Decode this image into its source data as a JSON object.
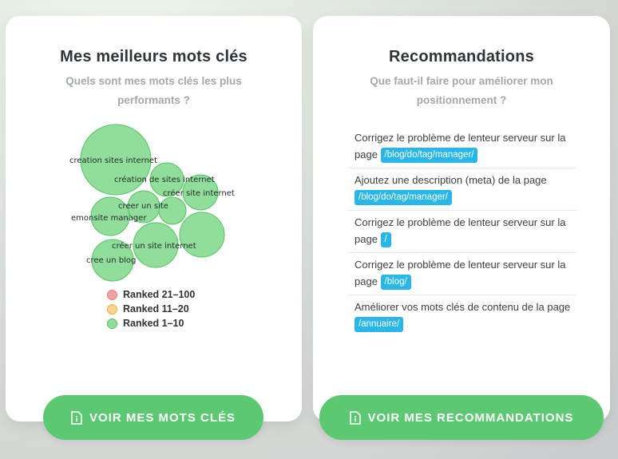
{
  "left_card": {
    "title": "Mes meilleurs mots clés",
    "subtitle": "Quels sont mes mots clés les plus performants ?",
    "bubbles": [
      {
        "label": "creation sites internet",
        "rank": "1-10"
      },
      {
        "label": "création de sites internet",
        "rank": "1-10"
      },
      {
        "label": "créer site internet",
        "rank": "1-10"
      },
      {
        "label": "creer un site",
        "rank": "1-10"
      },
      {
        "label": "emonsite manager",
        "rank": "1-10"
      },
      {
        "label": "créer un site internet",
        "rank": "1-10"
      },
      {
        "label": "cree un blog",
        "rank": "1-10"
      }
    ],
    "legend": [
      {
        "label": "Ranked 21–100",
        "color": "#f4a3a3",
        "border": "#e07b7b"
      },
      {
        "label": "Ranked 11–20",
        "color": "#fcd38a",
        "border": "#e6b04e"
      },
      {
        "label": "Ranked 1–10",
        "color": "#91dd9c",
        "border": "#52c462"
      }
    ],
    "button": {
      "label": "VOIR MES MOTS CLÉS",
      "icon": "document-info-icon"
    }
  },
  "right_card": {
    "title": "Recommandations",
    "subtitle": "Que faut-il faire pour améliorer mon positionnement ?",
    "items": [
      {
        "text": "Corrigez le problème de lenteur serveur sur la page",
        "tag": "/blog/do/tag/manager/"
      },
      {
        "text": "Ajoutez une description (meta) de la page",
        "tag": "/blog/do/tag/manager/"
      },
      {
        "text": "Corrigez le problème de lenteur serveur sur la page",
        "tag": "/"
      },
      {
        "text": "Corrigez le problème de lenteur serveur sur la page",
        "tag": "/blog/"
      },
      {
        "text": "Améliorer vos mots clés de contenu de la page",
        "tag": "/annuaire/"
      }
    ],
    "button": {
      "label": "VOIR MES RECOMMANDATIONS",
      "icon": "document-info-icon"
    }
  },
  "colors": {
    "accent_green": "#5dc872",
    "tag_blue": "#29b6e8"
  }
}
